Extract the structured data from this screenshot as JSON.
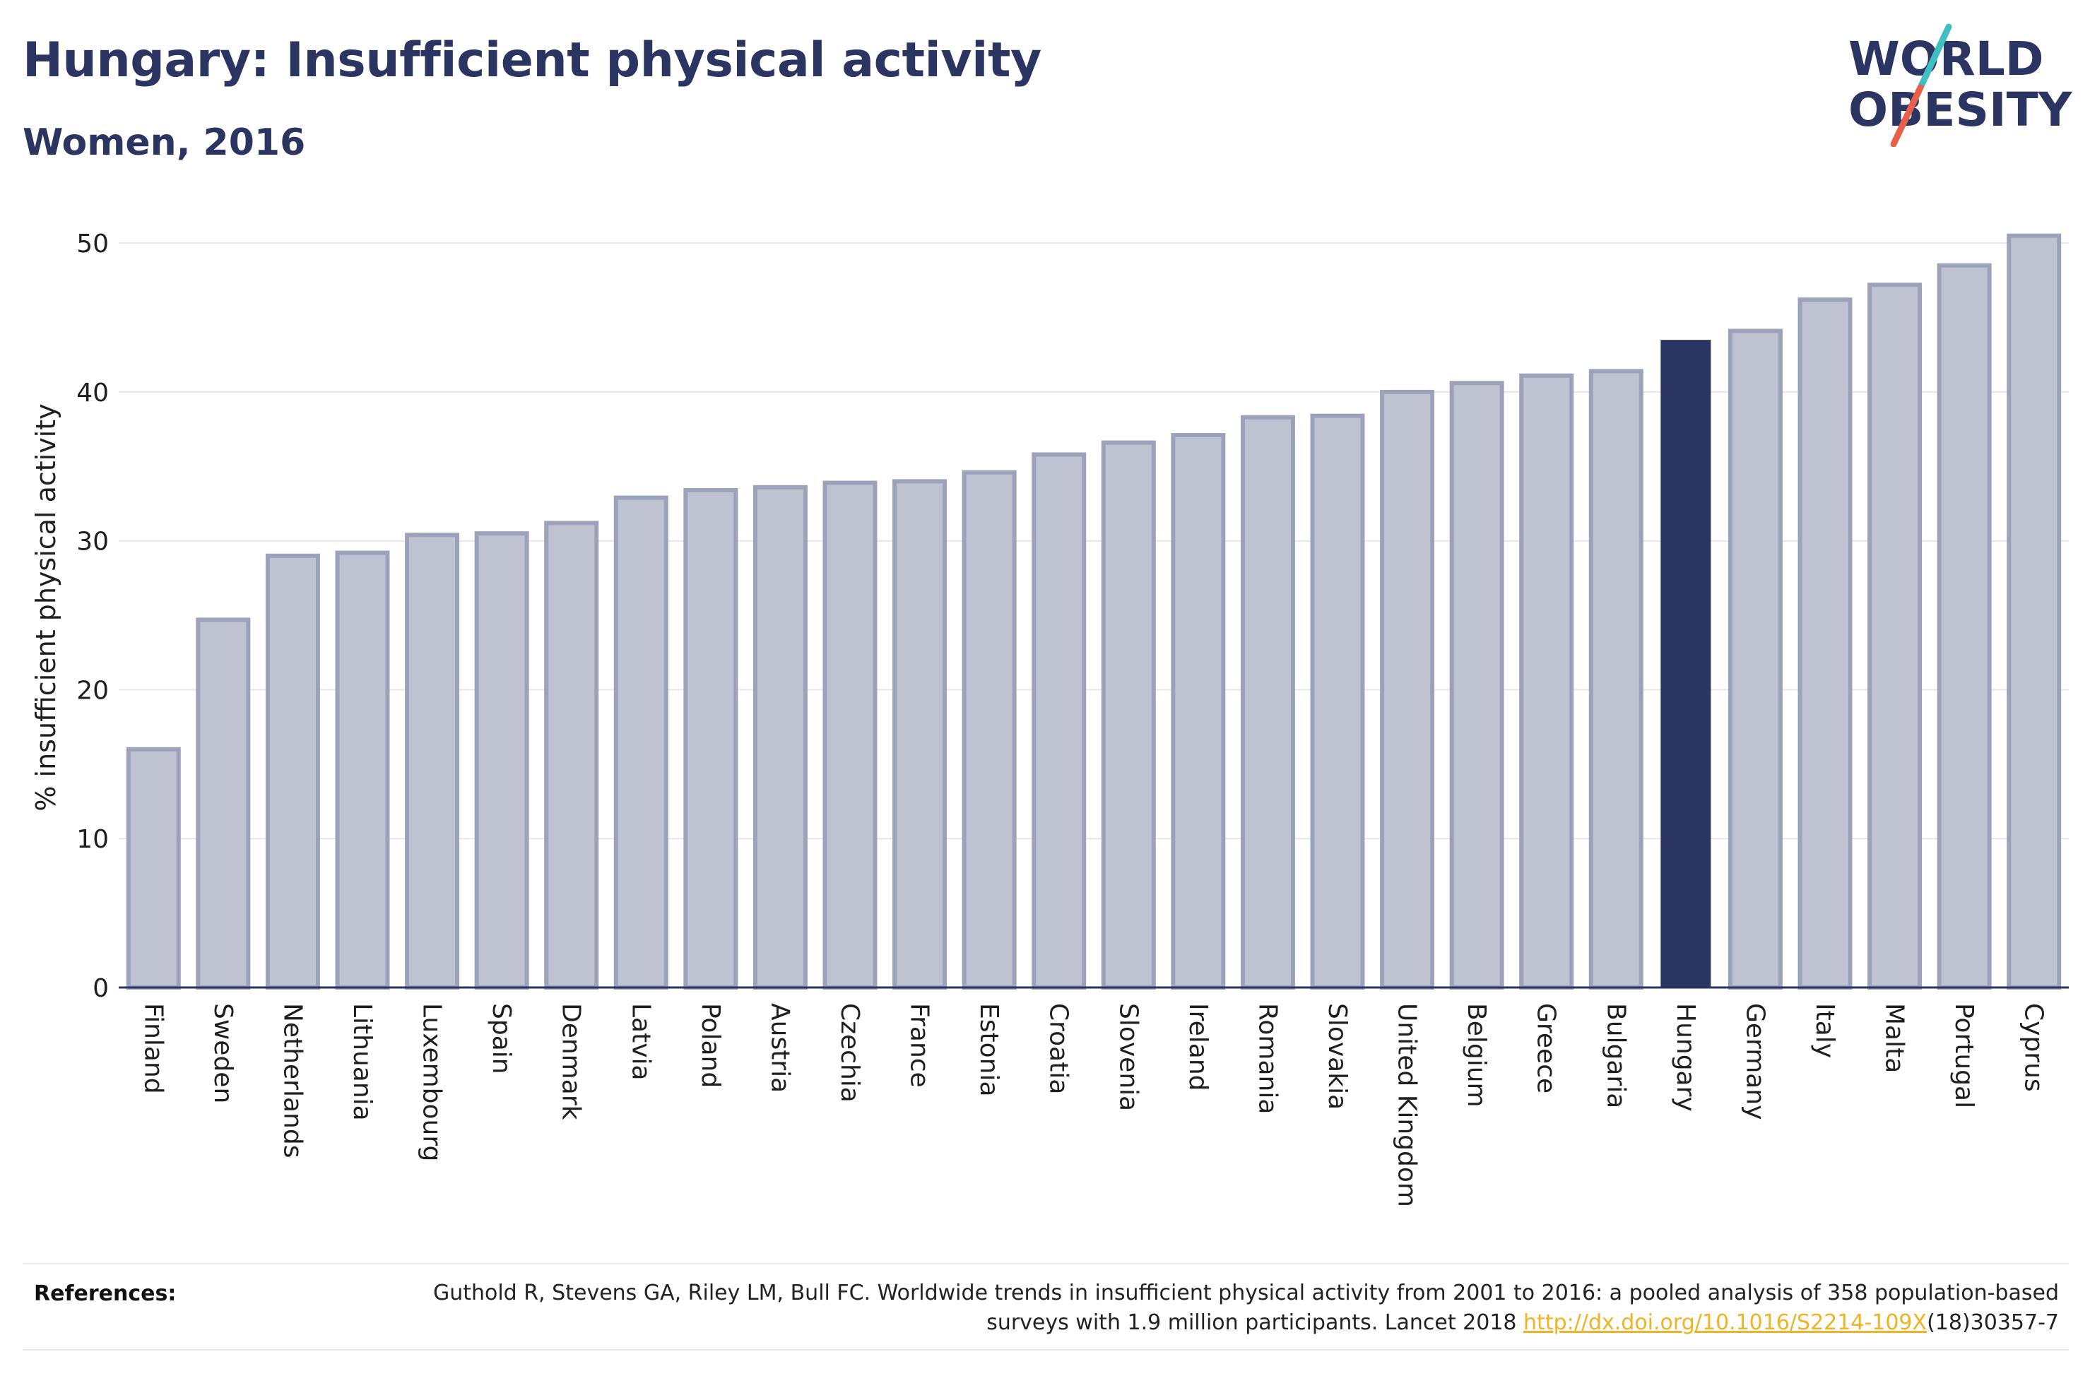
{
  "header": {
    "title": "Hungary: Insufficient physical activity",
    "subtitle": "Women, 2016"
  },
  "logo": {
    "line1": "WORLD",
    "line2": "OBESITY",
    "text_color": "#2b3561",
    "slash_top_color": "#3fbfbf",
    "slash_bottom_color": "#e8604c"
  },
  "colors": {
    "bar_default": "#bfc3d1",
    "bar_default_stroke": "#9ba2ba",
    "bar_highlight": "#2b3561",
    "grid": "#e6e8ee",
    "axis": "#2b3561"
  },
  "chart_data": {
    "type": "bar",
    "title": "Hungary: Insufficient physical activity",
    "subtitle": "Women, 2016",
    "xlabel": "",
    "ylabel": "% insufficient physical activity",
    "ylim": [
      0,
      52
    ],
    "yticks": [
      0,
      10,
      20,
      30,
      40,
      50
    ],
    "grid": true,
    "highlight": "Hungary",
    "categories": [
      "Finland",
      "Sweden",
      "Netherlands",
      "Lithuania",
      "Luxembourg",
      "Spain",
      "Denmark",
      "Latvia",
      "Poland",
      "Austria",
      "Czechia",
      "France",
      "Estonia",
      "Croatia",
      "Slovenia",
      "Ireland",
      "Romania",
      "Slovakia",
      "United Kingdom",
      "Belgium",
      "Greece",
      "Bulgaria",
      "Hungary",
      "Germany",
      "Italy",
      "Malta",
      "Portugal",
      "Cyprus"
    ],
    "values": [
      16.0,
      24.7,
      29.0,
      29.2,
      30.4,
      30.5,
      31.2,
      32.9,
      33.4,
      33.6,
      33.9,
      34.0,
      34.6,
      35.8,
      36.6,
      37.1,
      38.3,
      38.4,
      40.0,
      40.6,
      41.1,
      41.4,
      43.5,
      44.1,
      46.2,
      47.2,
      48.5,
      50.5
    ]
  },
  "references": {
    "label": "References:",
    "text_before_link": "Guthold R, Stevens GA, Riley LM, Bull FC. Worldwide trends in insufficient physical activity from 2001 to 2016: a pooled analysis of 358 population-based surveys with 1.9 million participants. Lancet 2018 ",
    "link_text": "http://dx.doi.org/10.1016/S2214-109X",
    "text_after_link": "(18)30357-7"
  }
}
